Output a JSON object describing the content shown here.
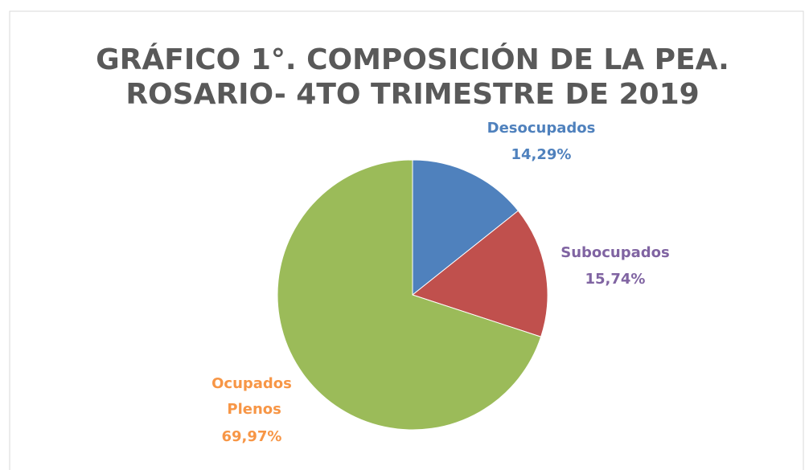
{
  "chart_data": {
    "type": "pie",
    "title": [
      "GRÁFICO 1°. COMPOSICIÓN DE LA PEA.",
      "ROSARIO- 4TO TRIMESTRE DE 2019"
    ],
    "categories": [
      "Desocupados",
      "Subocupados",
      "Ocupados Plenos"
    ],
    "values": [
      14.29,
      15.74,
      69.97
    ],
    "value_labels": [
      "14,29%",
      "15,74%",
      "69,97%"
    ],
    "colors": [
      "#4f81bd",
      "#c0504d",
      "#9bbb59"
    ],
    "label_colors": [
      "#4f81bd",
      "#8064a2",
      "#f79646"
    ]
  }
}
